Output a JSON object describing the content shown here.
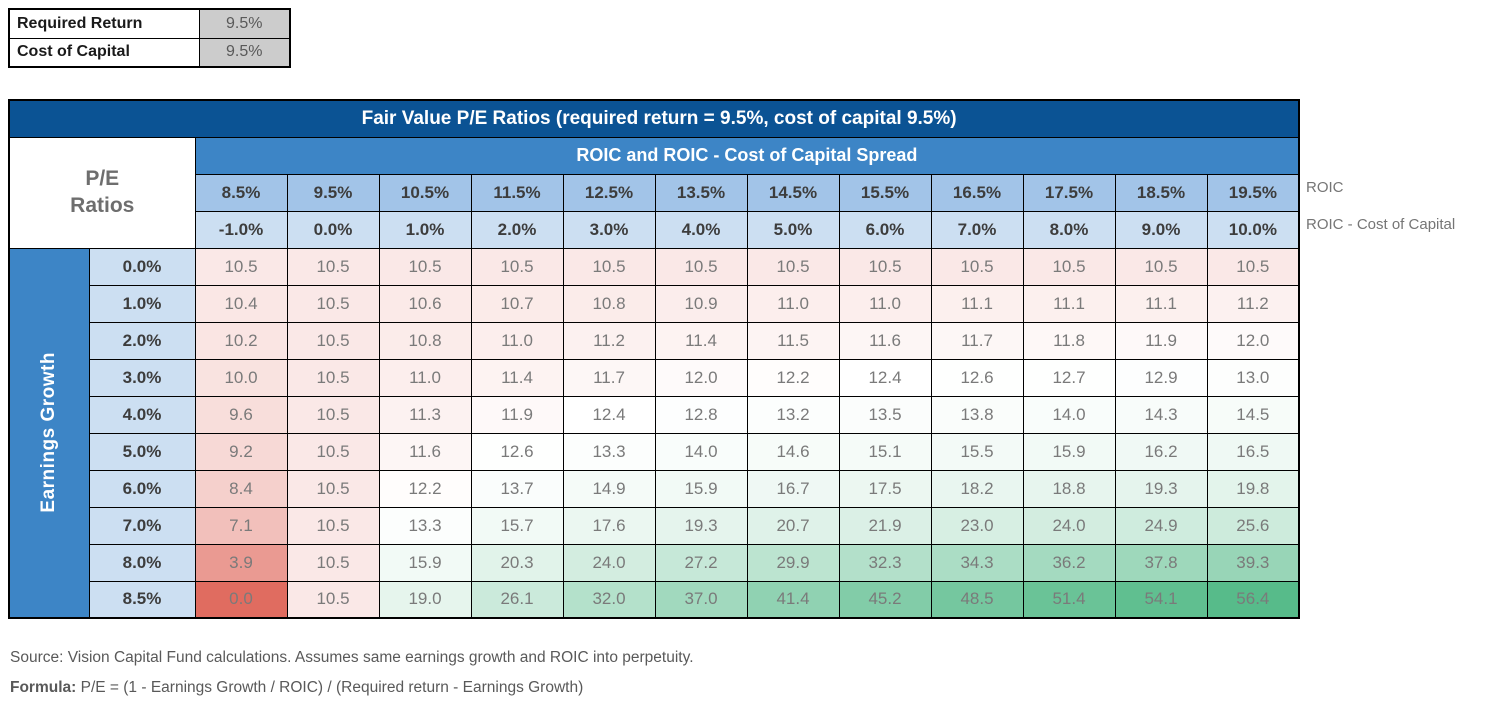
{
  "colors": {
    "title_bar_bg": "#0B5394",
    "group_band_bg": "#3D85C6",
    "growth_bar_bg": "#3D85C6",
    "roic_row_bg": "#A2C4E8",
    "light_blue_bg": "#CCDFF2",
    "param_value_bg": "#CCCCCC",
    "heat_min_color": "#E06C60",
    "heat_mid_color": "#FFFFFF",
    "heat_max_color": "#57BB8A"
  },
  "params_table": {
    "rows": [
      {
        "label": "Required Return",
        "value": "9.5%"
      },
      {
        "label": "Cost of Capital",
        "value": "9.5%"
      }
    ]
  },
  "matrix": {
    "title": "Fair Value P/E Ratios (required return = 9.5%, cost of capital 9.5%)",
    "corner_line1": "P/E",
    "corner_line2": "Ratios",
    "col_group_label": "ROIC and ROIC - Cost of Capital Spread",
    "row_axis_label": "Earnings Growth",
    "right_label_roic": "ROIC",
    "right_label_spread": "ROIC - Cost of Capital",
    "roic_header": [
      "8.5%",
      "9.5%",
      "10.5%",
      "11.5%",
      "12.5%",
      "13.5%",
      "14.5%",
      "15.5%",
      "16.5%",
      "17.5%",
      "18.5%",
      "19.5%"
    ],
    "spread_header": [
      "-1.0%",
      "0.0%",
      "1.0%",
      "2.0%",
      "3.0%",
      "4.0%",
      "5.0%",
      "6.0%",
      "7.0%",
      "8.0%",
      "9.0%",
      "10.0%"
    ],
    "rows": [
      {
        "growth": "0.0%",
        "values": [
          "10.5",
          "10.5",
          "10.5",
          "10.5",
          "10.5",
          "10.5",
          "10.5",
          "10.5",
          "10.5",
          "10.5",
          "10.5",
          "10.5"
        ]
      },
      {
        "growth": "1.0%",
        "values": [
          "10.4",
          "10.5",
          "10.6",
          "10.7",
          "10.8",
          "10.9",
          "11.0",
          "11.0",
          "11.1",
          "11.1",
          "11.1",
          "11.2"
        ]
      },
      {
        "growth": "2.0%",
        "values": [
          "10.2",
          "10.5",
          "10.8",
          "11.0",
          "11.2",
          "11.4",
          "11.5",
          "11.6",
          "11.7",
          "11.8",
          "11.9",
          "12.0"
        ]
      },
      {
        "growth": "3.0%",
        "values": [
          "10.0",
          "10.5",
          "11.0",
          "11.4",
          "11.7",
          "12.0",
          "12.2",
          "12.4",
          "12.6",
          "12.7",
          "12.9",
          "13.0"
        ]
      },
      {
        "growth": "4.0%",
        "values": [
          "9.6",
          "10.5",
          "11.3",
          "11.9",
          "12.4",
          "12.8",
          "13.2",
          "13.5",
          "13.8",
          "14.0",
          "14.3",
          "14.5"
        ]
      },
      {
        "growth": "5.0%",
        "values": [
          "9.2",
          "10.5",
          "11.6",
          "12.6",
          "13.3",
          "14.0",
          "14.6",
          "15.1",
          "15.5",
          "15.9",
          "16.2",
          "16.5"
        ]
      },
      {
        "growth": "6.0%",
        "values": [
          "8.4",
          "10.5",
          "12.2",
          "13.7",
          "14.9",
          "15.9",
          "16.7",
          "17.5",
          "18.2",
          "18.8",
          "19.3",
          "19.8"
        ]
      },
      {
        "growth": "7.0%",
        "values": [
          "7.1",
          "10.5",
          "13.3",
          "15.7",
          "17.6",
          "19.3",
          "20.7",
          "21.9",
          "23.0",
          "24.0",
          "24.9",
          "25.6"
        ]
      },
      {
        "growth": "8.0%",
        "values": [
          "3.9",
          "10.5",
          "15.9",
          "20.3",
          "24.0",
          "27.2",
          "29.9",
          "32.3",
          "34.3",
          "36.2",
          "37.8",
          "39.3"
        ]
      },
      {
        "growth": "8.5%",
        "values": [
          "0.0",
          "10.5",
          "19.0",
          "26.1",
          "32.0",
          "37.0",
          "41.4",
          "45.2",
          "48.5",
          "51.4",
          "54.1",
          "56.4"
        ]
      }
    ],
    "heatmap": {
      "min": 0,
      "mid": 12.4,
      "max": 56.4
    }
  },
  "chart_data": {
    "type": "heatmap",
    "title": "Fair Value P/E Ratios (required return = 9.5%, cost of capital 9.5%)",
    "xlabel": "ROIC and ROIC - Cost of Capital Spread",
    "ylabel": "Earnings Growth",
    "x_roic": [
      "8.5%",
      "9.5%",
      "10.5%",
      "11.5%",
      "12.5%",
      "13.5%",
      "14.5%",
      "15.5%",
      "16.5%",
      "17.5%",
      "18.5%",
      "19.5%"
    ],
    "x_spread": [
      "-1.0%",
      "0.0%",
      "1.0%",
      "2.0%",
      "3.0%",
      "4.0%",
      "5.0%",
      "6.0%",
      "7.0%",
      "8.0%",
      "9.0%",
      "10.0%"
    ],
    "y_growth": [
      "0.0%",
      "1.0%",
      "2.0%",
      "3.0%",
      "4.0%",
      "5.0%",
      "6.0%",
      "7.0%",
      "8.0%",
      "8.5%"
    ],
    "values": [
      [
        10.5,
        10.5,
        10.5,
        10.5,
        10.5,
        10.5,
        10.5,
        10.5,
        10.5,
        10.5,
        10.5,
        10.5
      ],
      [
        10.4,
        10.5,
        10.6,
        10.7,
        10.8,
        10.9,
        11.0,
        11.0,
        11.1,
        11.1,
        11.1,
        11.2
      ],
      [
        10.2,
        10.5,
        10.8,
        11.0,
        11.2,
        11.4,
        11.5,
        11.6,
        11.7,
        11.8,
        11.9,
        12.0
      ],
      [
        10.0,
        10.5,
        11.0,
        11.4,
        11.7,
        12.0,
        12.2,
        12.4,
        12.6,
        12.7,
        12.9,
        13.0
      ],
      [
        9.6,
        10.5,
        11.3,
        11.9,
        12.4,
        12.8,
        13.2,
        13.5,
        13.8,
        14.0,
        14.3,
        14.5
      ],
      [
        9.2,
        10.5,
        11.6,
        12.6,
        13.3,
        14.0,
        14.6,
        15.1,
        15.5,
        15.9,
        16.2,
        16.5
      ],
      [
        8.4,
        10.5,
        12.2,
        13.7,
        14.9,
        15.9,
        16.7,
        17.5,
        18.2,
        18.8,
        19.3,
        19.8
      ],
      [
        7.1,
        10.5,
        13.3,
        15.7,
        17.6,
        19.3,
        20.7,
        21.9,
        23.0,
        24.0,
        24.9,
        25.6
      ],
      [
        3.9,
        10.5,
        15.9,
        20.3,
        24.0,
        27.2,
        29.9,
        32.3,
        34.3,
        36.2,
        37.8,
        39.3
      ],
      [
        0.0,
        10.5,
        19.0,
        26.1,
        32.0,
        37.0,
        41.4,
        45.2,
        48.5,
        51.4,
        54.1,
        56.4
      ]
    ],
    "color_scale": {
      "min_color": "#E06C60",
      "mid_color": "#FFFFFF",
      "max_color": "#57BB8A",
      "min": 0,
      "mid": 12.4,
      "max": 56.4
    }
  },
  "footer": {
    "source": "Source: Vision Capital Fund calculations. Assumes same earnings growth and ROIC into perpetuity.",
    "formula_label": "Formula:",
    "formula_text": " P/E = (1 - Earnings Growth / ROIC) / (Required return - Earnings Growth)"
  }
}
